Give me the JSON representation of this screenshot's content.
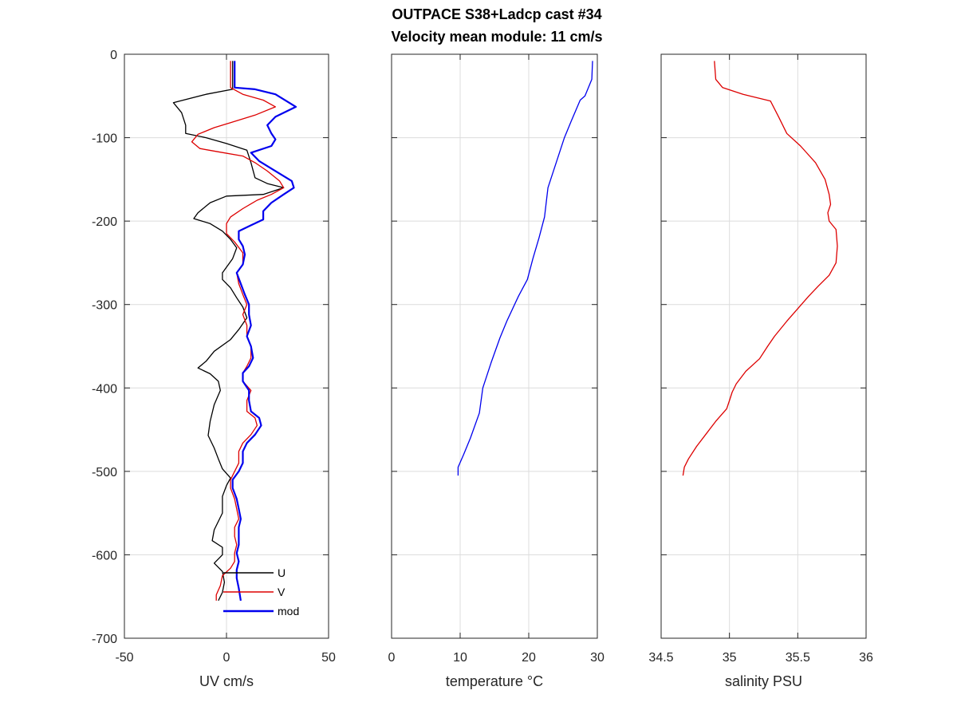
{
  "figure": {
    "title_line1": "OUTPACE S38+Ladcp cast #34",
    "title_line2": "Velocity mean module:  11 cm/s"
  },
  "chart_data": [
    {
      "type": "line",
      "xlabel": "UV cm/s",
      "ylabel": "",
      "xlim": [
        -50,
        50
      ],
      "ylim": [
        -700,
        0
      ],
      "xticks": [
        -50,
        0,
        50
      ],
      "yticks": [
        0,
        -100,
        -200,
        -300,
        -400,
        -500,
        -600,
        -700
      ],
      "grid": true,
      "legend": "bottom-right",
      "series": [
        {
          "name": "U",
          "color": "#000000",
          "points": [
            [
              3,
              -8
            ],
            [
              3,
              -30
            ],
            [
              3,
              -42
            ],
            [
              -10,
              -48
            ],
            [
              -26,
              -58
            ],
            [
              -22,
              -70
            ],
            [
              -20,
              -85
            ],
            [
              -20,
              -95
            ],
            [
              -10,
              -100
            ],
            [
              0,
              -107
            ],
            [
              10,
              -115
            ],
            [
              12,
              -130
            ],
            [
              14,
              -148
            ],
            [
              20,
              -155
            ],
            [
              28,
              -160
            ],
            [
              18,
              -168
            ],
            [
              0,
              -170
            ],
            [
              -8,
              -178
            ],
            [
              -14,
              -190
            ],
            [
              -16,
              -197
            ],
            [
              -8,
              -203
            ],
            [
              -2,
              -212
            ],
            [
              2,
              -222
            ],
            [
              5,
              -232
            ],
            [
              3,
              -245
            ],
            [
              -2,
              -262
            ],
            [
              -2,
              -270
            ],
            [
              2,
              -280
            ],
            [
              5,
              -292
            ],
            [
              8,
              -303
            ],
            [
              10,
              -316
            ],
            [
              6,
              -330
            ],
            [
              2,
              -342
            ],
            [
              -6,
              -356
            ],
            [
              -10,
              -368
            ],
            [
              -14,
              -376
            ],
            [
              -8,
              -383
            ],
            [
              -4,
              -392
            ],
            [
              -3,
              -403
            ],
            [
              -6,
              -420
            ],
            [
              -8,
              -440
            ],
            [
              -9,
              -457
            ],
            [
              -6,
              -472
            ],
            [
              -4,
              -485
            ],
            [
              -2,
              -497
            ],
            [
              2,
              -508
            ],
            [
              0,
              -517
            ],
            [
              -2,
              -530
            ],
            [
              -2,
              -550
            ],
            [
              -6,
              -570
            ],
            [
              -7,
              -583
            ],
            [
              -2,
              -591
            ],
            [
              -2,
              -600
            ],
            [
              -6,
              -610
            ],
            [
              -2,
              -620
            ],
            [
              -1,
              -633
            ],
            [
              -2,
              -645
            ],
            [
              -4,
              -655
            ]
          ]
        },
        {
          "name": "V",
          "color": "#dd0000",
          "points": [
            [
              2,
              -8
            ],
            [
              2,
              -25
            ],
            [
              2,
              -40
            ],
            [
              8,
              -48
            ],
            [
              18,
              -55
            ],
            [
              24,
              -63
            ],
            [
              14,
              -73
            ],
            [
              2,
              -82
            ],
            [
              -6,
              -88
            ],
            [
              -14,
              -96
            ],
            [
              -17,
              -105
            ],
            [
              -13,
              -113
            ],
            [
              -4,
              -117
            ],
            [
              8,
              -122
            ],
            [
              14,
              -130
            ],
            [
              20,
              -140
            ],
            [
              26,
              -152
            ],
            [
              28,
              -160
            ],
            [
              22,
              -168
            ],
            [
              15,
              -175
            ],
            [
              8,
              -185
            ],
            [
              2,
              -195
            ],
            [
              0,
              -203
            ],
            [
              0,
              -215
            ],
            [
              4,
              -225
            ],
            [
              8,
              -238
            ],
            [
              8,
              -252
            ],
            [
              5,
              -262
            ],
            [
              6,
              -275
            ],
            [
              8,
              -288
            ],
            [
              10,
              -300
            ],
            [
              8,
              -312
            ],
            [
              10,
              -325
            ],
            [
              10,
              -338
            ],
            [
              12,
              -350
            ],
            [
              12,
              -364
            ],
            [
              10,
              -374
            ],
            [
              8,
              -382
            ],
            [
              8,
              -392
            ],
            [
              12,
              -403
            ],
            [
              10,
              -415
            ],
            [
              10,
              -428
            ],
            [
              14,
              -436
            ],
            [
              15,
              -445
            ],
            [
              12,
              -456
            ],
            [
              8,
              -466
            ],
            [
              6,
              -476
            ],
            [
              6,
              -490
            ],
            [
              4,
              -500
            ],
            [
              2,
              -510
            ],
            [
              2,
              -520
            ],
            [
              4,
              -533
            ],
            [
              5,
              -545
            ],
            [
              6,
              -557
            ],
            [
              4,
              -567
            ],
            [
              4,
              -578
            ],
            [
              5,
              -588
            ],
            [
              4,
              -598
            ],
            [
              4,
              -608
            ],
            [
              2,
              -616
            ],
            [
              -2,
              -625
            ],
            [
              -3,
              -637
            ],
            [
              -5,
              -648
            ],
            [
              -5,
              -655
            ]
          ]
        },
        {
          "name": "mod",
          "color": "#0000ee",
          "points": [
            [
              4,
              -8
            ],
            [
              4,
              -28
            ],
            [
              4,
              -40
            ],
            [
              14,
              -42
            ],
            [
              24,
              -48
            ],
            [
              34,
              -63
            ],
            [
              24,
              -75
            ],
            [
              20,
              -85
            ],
            [
              22,
              -95
            ],
            [
              24,
              -102
            ],
            [
              22,
              -110
            ],
            [
              12,
              -118
            ],
            [
              16,
              -128
            ],
            [
              24,
              -140
            ],
            [
              32,
              -152
            ],
            [
              33,
              -160
            ],
            [
              28,
              -168
            ],
            [
              22,
              -178
            ],
            [
              18,
              -188
            ],
            [
              18,
              -198
            ],
            [
              12,
              -205
            ],
            [
              6,
              -212
            ],
            [
              6,
              -222
            ],
            [
              8,
              -230
            ],
            [
              9,
              -240
            ],
            [
              8,
              -252
            ],
            [
              5,
              -262
            ],
            [
              7,
              -275
            ],
            [
              9,
              -288
            ],
            [
              11,
              -300
            ],
            [
              11,
              -312
            ],
            [
              12,
              -325
            ],
            [
              10,
              -338
            ],
            [
              12,
              -350
            ],
            [
              13,
              -364
            ],
            [
              11,
              -374
            ],
            [
              8,
              -382
            ],
            [
              8,
              -392
            ],
            [
              11,
              -403
            ],
            [
              11,
              -415
            ],
            [
              12,
              -428
            ],
            [
              16,
              -436
            ],
            [
              17,
              -445
            ],
            [
              14,
              -456
            ],
            [
              10,
              -466
            ],
            [
              8,
              -476
            ],
            [
              8,
              -490
            ],
            [
              6,
              -500
            ],
            [
              3,
              -510
            ],
            [
              3,
              -520
            ],
            [
              5,
              -533
            ],
            [
              6,
              -545
            ],
            [
              7,
              -557
            ],
            [
              6,
              -567
            ],
            [
              6,
              -578
            ],
            [
              6,
              -588
            ],
            [
              5,
              -598
            ],
            [
              6,
              -608
            ],
            [
              5,
              -618
            ],
            [
              5,
              -628
            ],
            [
              6,
              -640
            ],
            [
              7,
              -655
            ]
          ]
        }
      ]
    },
    {
      "type": "line",
      "xlabel": "temperature °C",
      "ylabel": "",
      "xlim": [
        0,
        30
      ],
      "ylim": [
        -700,
        0
      ],
      "xticks": [
        0,
        10,
        20,
        30
      ],
      "yticks": [
        0,
        -100,
        -200,
        -300,
        -400,
        -500,
        -600,
        -700
      ],
      "grid": true,
      "series": [
        {
          "name": "",
          "color": "#0000ee",
          "points": [
            [
              29.3,
              -8
            ],
            [
              29.2,
              -30
            ],
            [
              28.2,
              -50
            ],
            [
              27.5,
              -55
            ],
            [
              26.2,
              -80
            ],
            [
              25.2,
              -100
            ],
            [
              24.0,
              -130
            ],
            [
              22.8,
              -160
            ],
            [
              22.3,
              -195
            ],
            [
              21.5,
              -220
            ],
            [
              20.6,
              -245
            ],
            [
              19.8,
              -270
            ],
            [
              18.5,
              -290
            ],
            [
              16.8,
              -320
            ],
            [
              15.8,
              -340
            ],
            [
              14.5,
              -370
            ],
            [
              13.3,
              -400
            ],
            [
              12.8,
              -430
            ],
            [
              11.5,
              -460
            ],
            [
              10.5,
              -480
            ],
            [
              9.7,
              -495
            ],
            [
              9.7,
              -505
            ]
          ]
        }
      ]
    },
    {
      "type": "line",
      "xlabel": "salinity PSU",
      "ylabel": "",
      "xlim": [
        34.5,
        36
      ],
      "ylim": [
        -700,
        0
      ],
      "xticks": [
        34.5,
        35,
        35.5,
        36
      ],
      "yticks": [
        0,
        -100,
        -200,
        -300,
        -400,
        -500,
        -600,
        -700
      ],
      "grid": true,
      "series": [
        {
          "name": "",
          "color": "#dd0000",
          "points": [
            [
              34.89,
              -8
            ],
            [
              34.9,
              -30
            ],
            [
              34.95,
              -40
            ],
            [
              35.1,
              -48
            ],
            [
              35.3,
              -56
            ],
            [
              35.36,
              -75
            ],
            [
              35.42,
              -95
            ],
            [
              35.52,
              -110
            ],
            [
              35.63,
              -130
            ],
            [
              35.7,
              -150
            ],
            [
              35.73,
              -168
            ],
            [
              35.74,
              -180
            ],
            [
              35.72,
              -190
            ],
            [
              35.73,
              -200
            ],
            [
              35.78,
              -210
            ],
            [
              35.79,
              -230
            ],
            [
              35.78,
              -250
            ],
            [
              35.73,
              -265
            ],
            [
              35.65,
              -278
            ],
            [
              35.58,
              -290
            ],
            [
              35.5,
              -305
            ],
            [
              35.42,
              -320
            ],
            [
              35.33,
              -338
            ],
            [
              35.28,
              -350
            ],
            [
              35.22,
              -365
            ],
            [
              35.12,
              -380
            ],
            [
              35.05,
              -395
            ],
            [
              35.02,
              -405
            ],
            [
              35.0,
              -415
            ],
            [
              34.98,
              -425
            ],
            [
              34.9,
              -440
            ],
            [
              34.83,
              -455
            ],
            [
              34.76,
              -470
            ],
            [
              34.7,
              -485
            ],
            [
              34.67,
              -495
            ],
            [
              34.66,
              -505
            ]
          ]
        }
      ]
    }
  ]
}
